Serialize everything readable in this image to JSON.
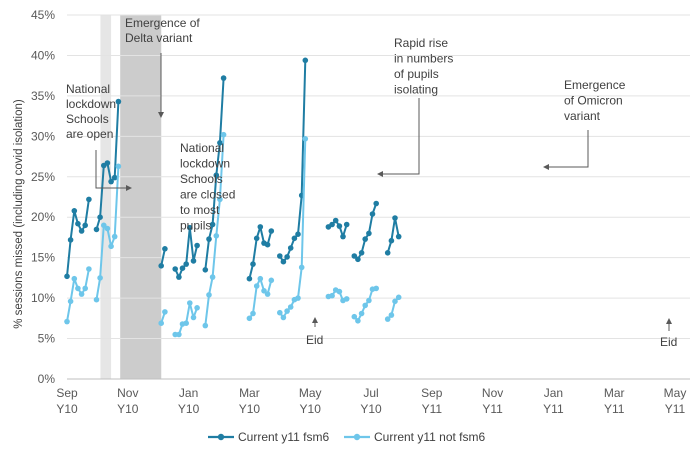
{
  "chart_data": {
    "type": "line",
    "ylabel": "% sessions missed (including covid isolation)",
    "ylim": [
      0,
      45
    ],
    "y_ticks": [
      "0%",
      "5%",
      "10%",
      "15%",
      "20%",
      "25%",
      "30%",
      "35%",
      "40%",
      "45%"
    ],
    "x_ticks": [
      {
        "l1": "Sep",
        "l2": "Y10"
      },
      {
        "l1": "Nov",
        "l2": "Y10"
      },
      {
        "l1": "Jan",
        "l2": "Y10"
      },
      {
        "l1": "Mar",
        "l2": "Y10"
      },
      {
        "l1": "May",
        "l2": "Y10"
      },
      {
        "l1": "Jul",
        "l2": "Y10"
      },
      {
        "l1": "Sep",
        "l2": "Y11"
      },
      {
        "l1": "Nov",
        "l2": "Y11"
      },
      {
        "l1": "Jan",
        "l2": "Y11"
      },
      {
        "l1": "Mar",
        "l2": "Y11"
      },
      {
        "l1": "May",
        "l2": "Y11"
      }
    ],
    "x_unit": "months since Sep Y10",
    "shaded_regions": [
      {
        "from": 1.1,
        "to": 1.45,
        "color": "#e6e6e6"
      },
      {
        "from": 1.75,
        "to": 3.1,
        "color": "#cccccc"
      }
    ],
    "series": [
      {
        "name": "Current y11 fsm6",
        "color": "#1f7da3",
        "segments": [
          [
            [
              0.0,
              12.7
            ],
            [
              0.12,
              17.2
            ],
            [
              0.24,
              20.8
            ],
            [
              0.36,
              19.2
            ],
            [
              0.48,
              18.3
            ],
            [
              0.6,
              19.0
            ],
            [
              0.72,
              22.2
            ]
          ],
          [
            [
              0.97,
              18.5
            ],
            [
              1.09,
              20.0
            ],
            [
              1.21,
              26.4
            ],
            [
              1.33,
              26.7
            ],
            [
              1.45,
              24.4
            ],
            [
              1.57,
              24.9
            ],
            [
              1.69,
              34.3
            ]
          ],
          [
            [
              3.1,
              14.0
            ],
            [
              3.22,
              16.1
            ]
          ],
          [
            [
              3.56,
              13.6
            ],
            [
              3.68,
              12.6
            ],
            [
              3.8,
              13.7
            ],
            [
              3.92,
              14.2
            ],
            [
              4.04,
              18.7
            ],
            [
              4.16,
              14.6
            ],
            [
              4.28,
              16.5
            ]
          ],
          [
            [
              4.55,
              13.5
            ],
            [
              4.67,
              17.3
            ],
            [
              4.79,
              19.1
            ],
            [
              4.91,
              25.2
            ],
            [
              5.03,
              29.2
            ],
            [
              5.15,
              37.2
            ]
          ],
          [
            [
              6.0,
              12.4
            ],
            [
              6.12,
              14.2
            ],
            [
              6.24,
              17.4
            ],
            [
              6.36,
              18.8
            ],
            [
              6.48,
              16.8
            ],
            [
              6.6,
              16.6
            ],
            [
              6.72,
              18.3
            ]
          ],
          [
            [
              7.0,
              15.2
            ],
            [
              7.12,
              14.5
            ],
            [
              7.24,
              15.1
            ],
            [
              7.36,
              16.2
            ],
            [
              7.48,
              17.4
            ],
            [
              7.6,
              17.9
            ],
            [
              7.72,
              22.7
            ],
            [
              7.84,
              39.4
            ]
          ],
          [
            [
              8.6,
              18.8
            ],
            [
              8.72,
              19.1
            ],
            [
              8.84,
              19.6
            ],
            [
              8.96,
              18.9
            ],
            [
              9.08,
              17.6
            ],
            [
              9.2,
              19.1
            ]
          ],
          [
            [
              9.45,
              15.2
            ],
            [
              9.57,
              14.8
            ],
            [
              9.69,
              15.6
            ],
            [
              9.81,
              17.3
            ],
            [
              9.93,
              18.0
            ],
            [
              10.05,
              20.4
            ],
            [
              10.17,
              21.7
            ]
          ],
          [
            [
              10.55,
              15.6
            ],
            [
              10.67,
              17.1
            ],
            [
              10.79,
              19.9
            ],
            [
              10.91,
              17.6
            ]
          ]
        ]
      },
      {
        "name": "Current y11 not fsm6",
        "color": "#6ec6ea",
        "segments": [
          [
            [
              0.0,
              7.1
            ],
            [
              0.12,
              9.6
            ],
            [
              0.24,
              12.4
            ],
            [
              0.36,
              11.2
            ],
            [
              0.48,
              10.5
            ],
            [
              0.6,
              11.2
            ],
            [
              0.72,
              13.6
            ]
          ],
          [
            [
              0.97,
              9.8
            ],
            [
              1.09,
              12.5
            ],
            [
              1.21,
              19.0
            ],
            [
              1.33,
              18.6
            ],
            [
              1.45,
              16.4
            ],
            [
              1.57,
              17.6
            ],
            [
              1.69,
              26.3
            ]
          ],
          [
            [
              3.1,
              6.9
            ],
            [
              3.22,
              8.3
            ]
          ],
          [
            [
              3.56,
              5.5
            ],
            [
              3.68,
              5.5
            ],
            [
              3.8,
              6.8
            ],
            [
              3.92,
              6.9
            ],
            [
              4.04,
              9.4
            ],
            [
              4.16,
              7.6
            ],
            [
              4.28,
              8.8
            ]
          ],
          [
            [
              4.55,
              6.6
            ],
            [
              4.67,
              10.4
            ],
            [
              4.79,
              12.6
            ],
            [
              4.91,
              17.7
            ],
            [
              5.03,
              22.2
            ],
            [
              5.15,
              30.2
            ]
          ],
          [
            [
              6.0,
              7.5
            ],
            [
              6.12,
              8.1
            ],
            [
              6.24,
              11.5
            ],
            [
              6.36,
              12.4
            ],
            [
              6.48,
              10.9
            ],
            [
              6.6,
              10.5
            ],
            [
              6.72,
              12.2
            ]
          ],
          [
            [
              7.0,
              8.2
            ],
            [
              7.12,
              7.6
            ],
            [
              7.24,
              8.4
            ],
            [
              7.36,
              8.9
            ],
            [
              7.48,
              9.8
            ],
            [
              7.6,
              10.0
            ],
            [
              7.72,
              13.8
            ],
            [
              7.84,
              29.7
            ]
          ],
          [
            [
              8.6,
              10.2
            ],
            [
              8.72,
              10.3
            ],
            [
              8.84,
              11.0
            ],
            [
              8.96,
              10.8
            ],
            [
              9.08,
              9.7
            ],
            [
              9.2,
              9.9
            ]
          ],
          [
            [
              9.45,
              7.7
            ],
            [
              9.57,
              7.2
            ],
            [
              9.69,
              8.1
            ],
            [
              9.81,
              9.1
            ],
            [
              9.93,
              9.7
            ],
            [
              10.05,
              11.1
            ],
            [
              10.17,
              11.2
            ]
          ],
          [
            [
              10.55,
              7.4
            ],
            [
              10.67,
              7.9
            ],
            [
              10.79,
              9.6
            ],
            [
              10.91,
              10.1
            ]
          ]
        ]
      }
    ],
    "annotations": [
      {
        "lines": [
          "Emergence of",
          "Delta variant"
        ]
      },
      {
        "lines": [
          "National",
          "lockdown",
          "Schools",
          "are open"
        ]
      },
      {
        "lines": [
          "National",
          "lockdown",
          "Schools",
          "are closed",
          "to most",
          "pupils"
        ]
      },
      {
        "lines": [
          "Rapid rise",
          "in numbers",
          "of pupils",
          "isolating"
        ]
      },
      {
        "lines": [
          "Emergence",
          "of Omicron",
          "variant"
        ]
      },
      {
        "lines": [
          "Eid"
        ]
      },
      {
        "lines": [
          "Eid"
        ]
      }
    ]
  }
}
